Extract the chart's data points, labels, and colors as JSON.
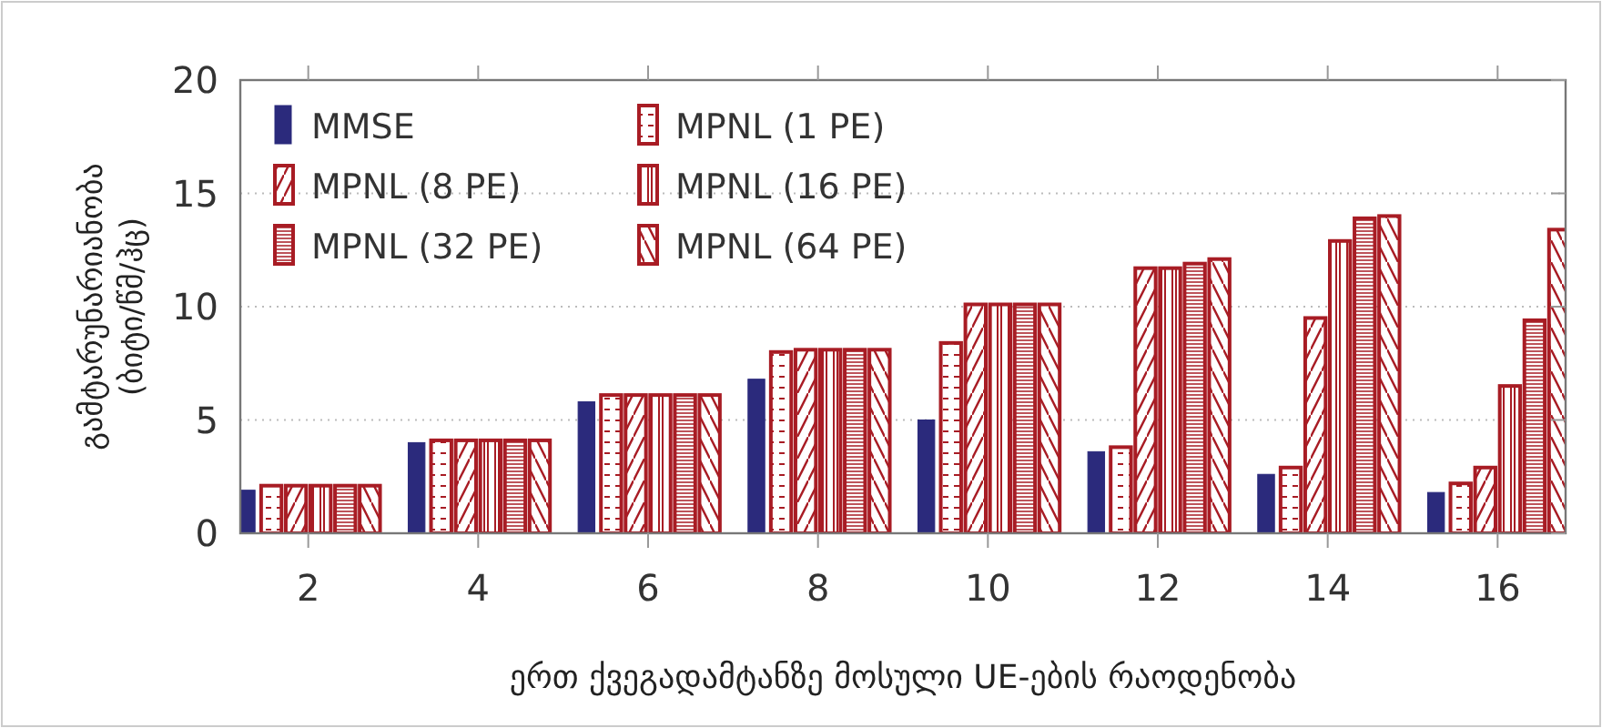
{
  "chart_data": {
    "type": "bar",
    "ylabel": "გამტარუნარიანობა (ბიტი/წმ/ჰც)",
    "xlabel": "ერთ ქვეგადამტანზე მოსული UE-ების რაოდენობა",
    "x": [
      2,
      4,
      6,
      8,
      10,
      12,
      14,
      16
    ],
    "xlim": [
      1.2,
      16.8
    ],
    "xticks": [
      2,
      4,
      6,
      8,
      10,
      12,
      14,
      16
    ],
    "ylim": [
      0,
      20
    ],
    "yticks": [
      0,
      5,
      10,
      15,
      20
    ],
    "grid": "y",
    "legend": "top left",
    "series": [
      {
        "name": "MMSE",
        "color": "#2b2a7c",
        "values": [
          1.9,
          4.0,
          5.8,
          6.8,
          5.0,
          3.6,
          2.6,
          1.8
        ]
      },
      {
        "name": "MPNL (1 PE)",
        "color": "#a81c24",
        "values": [
          2.1,
          4.1,
          6.1,
          8.0,
          8.4,
          3.8,
          2.9,
          2.2
        ]
      },
      {
        "name": "MPNL (8 PE)",
        "color": "#a81c24",
        "values": [
          2.1,
          4.1,
          6.1,
          8.1,
          10.1,
          11.7,
          9.5,
          2.9
        ]
      },
      {
        "name": "MPNL (16 PE)",
        "color": "#a81c24",
        "values": [
          2.1,
          4.1,
          6.1,
          8.1,
          10.1,
          11.7,
          12.9,
          6.5
        ]
      },
      {
        "name": "MPNL (32 PE)",
        "color": "#a81c24",
        "values": [
          2.1,
          4.1,
          6.1,
          8.1,
          10.1,
          11.9,
          13.9,
          9.4
        ]
      },
      {
        "name": "MPNL (64 PE)",
        "color": "#a81c24",
        "values": [
          2.1,
          4.1,
          6.1,
          8.1,
          10.1,
          12.1,
          14.0,
          13.4
        ]
      }
    ]
  }
}
